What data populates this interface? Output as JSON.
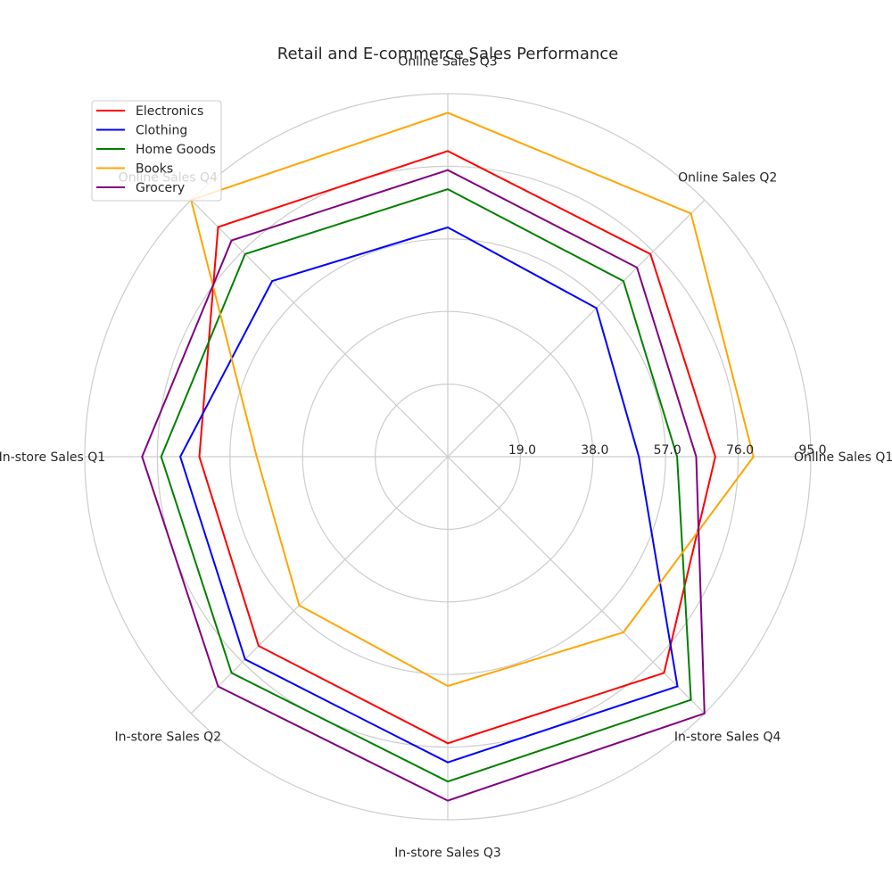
{
  "chart_data": {
    "type": "radar",
    "title": "Retail and E-commerce Sales Performance",
    "axes": [
      "Online Sales Q1",
      "Online Sales Q2",
      "Online Sales Q3",
      "Online Sales Q4",
      "In-store Sales Q1",
      "In-store Sales Q2",
      "In-store Sales Q3",
      "In-store Sales Q4"
    ],
    "radial_ticks": [
      19.0,
      38.0,
      57.0,
      76.0,
      95.0
    ],
    "radial_range": [
      0,
      95
    ],
    "grid": true,
    "legend_position": "top-left",
    "series": [
      {
        "name": "Electronics",
        "color": "#ff0000",
        "values": [
          70,
          75,
          80,
          85,
          65,
          70,
          75,
          80
        ]
      },
      {
        "name": "Clothing",
        "color": "#0000ff",
        "values": [
          50,
          55,
          60,
          65,
          70,
          75,
          80,
          85
        ]
      },
      {
        "name": "Home Goods",
        "color": "#008000",
        "values": [
          60,
          65,
          70,
          75,
          75,
          80,
          85,
          90
        ]
      },
      {
        "name": "Books",
        "color": "#ffa500",
        "values": [
          80,
          90,
          90,
          95,
          50,
          55,
          60,
          65
        ]
      },
      {
        "name": "Grocery",
        "color": "#800080",
        "values": [
          65,
          70,
          75,
          80,
          80,
          85,
          90,
          95
        ]
      }
    ]
  }
}
